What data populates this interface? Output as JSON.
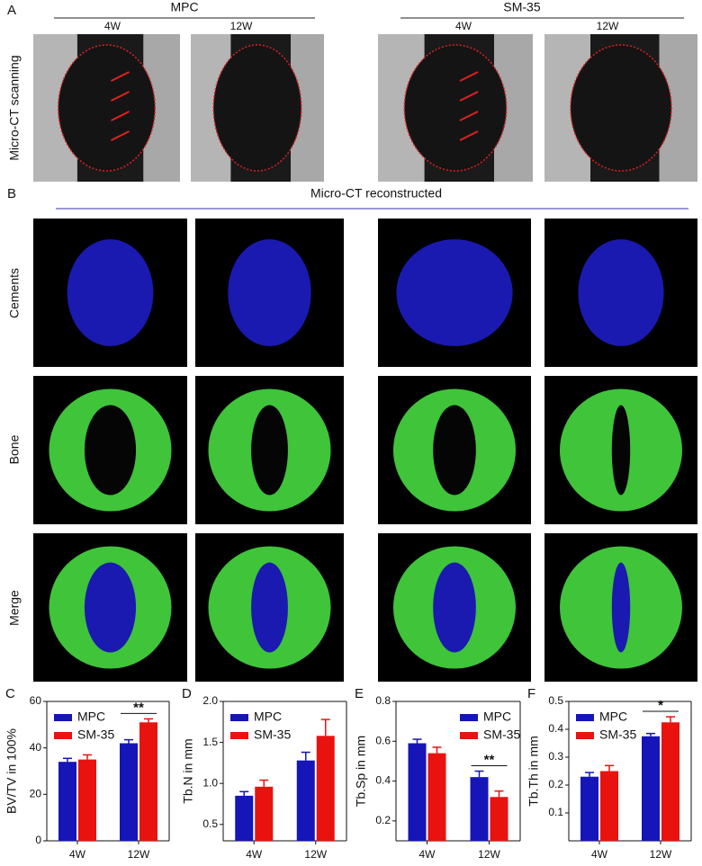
{
  "panel_a": {
    "label": "A",
    "title": "Micro-CT scanning",
    "groups": [
      {
        "name": "MPC",
        "columns": [
          "4W",
          "12W"
        ]
      },
      {
        "name": "SM-35",
        "columns": [
          "4W",
          "12W"
        ]
      }
    ]
  },
  "panel_b": {
    "label": "B",
    "title": "Micro-CT reconstructed",
    "rows": [
      "Cements",
      "Bone",
      "Merge"
    ]
  },
  "chart_data": [
    {
      "type": "bar",
      "panel": "C",
      "y_label": "BV/TV in 100%",
      "categories": [
        "4W",
        "12W"
      ],
      "series": [
        {
          "name": "MPC",
          "color": "#1515b8",
          "values": [
            34,
            42
          ],
          "errors": [
            1.5,
            1.5
          ]
        },
        {
          "name": "SM-35",
          "color": "#e8130f",
          "values": [
            35,
            51
          ],
          "errors": [
            2,
            1.5
          ]
        }
      ],
      "ylim": [
        0,
        60
      ],
      "yticks": [
        0,
        20,
        40,
        60
      ],
      "legend": "upper left",
      "significance": "**"
    },
    {
      "type": "bar",
      "panel": "D",
      "y_label": "Tb.N in mm",
      "categories": [
        "4W",
        "12W"
      ],
      "series": [
        {
          "name": "MPC",
          "color": "#1515b8",
          "values": [
            0.85,
            1.28
          ],
          "errors": [
            0.05,
            0.1
          ]
        },
        {
          "name": "SM-35",
          "color": "#e8130f",
          "values": [
            0.96,
            1.58
          ],
          "errors": [
            0.08,
            0.2
          ]
        }
      ],
      "ylim": [
        0.3,
        2.0
      ],
      "yticks": [
        0.5,
        {
          "value": 1,
          "label": "1.0"
        },
        1.5,
        {
          "value": 2,
          "label": "2.0"
        }
      ],
      "legend": "upper left"
    },
    {
      "type": "bar",
      "panel": "E",
      "y_label": "Tb.Sp in mm",
      "categories": [
        "4W",
        "12W"
      ],
      "series": [
        {
          "name": "MPC",
          "color": "#1515b8",
          "values": [
            0.59,
            0.42
          ],
          "errors": [
            0.02,
            0.03
          ]
        },
        {
          "name": "SM-35",
          "color": "#e8130f",
          "values": [
            0.54,
            0.32
          ],
          "errors": [
            0.03,
            0.03
          ]
        }
      ],
      "ylim": [
        0.1,
        0.8
      ],
      "yticks": [
        0.2,
        0.4,
        0.6,
        0.8
      ],
      "legend": "upper right",
      "significance": "**"
    },
    {
      "type": "bar",
      "panel": "F",
      "y_label": "Tb.Th in mm",
      "categories": [
        "4W",
        "12W"
      ],
      "series": [
        {
          "name": "MPC",
          "color": "#1515b8",
          "values": [
            0.23,
            0.375
          ],
          "errors": [
            0.015,
            0.01
          ]
        },
        {
          "name": "SM-35",
          "color": "#e8130f",
          "values": [
            0.25,
            0.425
          ],
          "errors": [
            0.02,
            0.02
          ]
        }
      ],
      "ylim": [
        0,
        0.5
      ],
      "yticks": [
        0.1,
        0.2,
        0.3,
        0.4,
        0.5
      ],
      "legend": "upper left",
      "significance": "*"
    }
  ]
}
